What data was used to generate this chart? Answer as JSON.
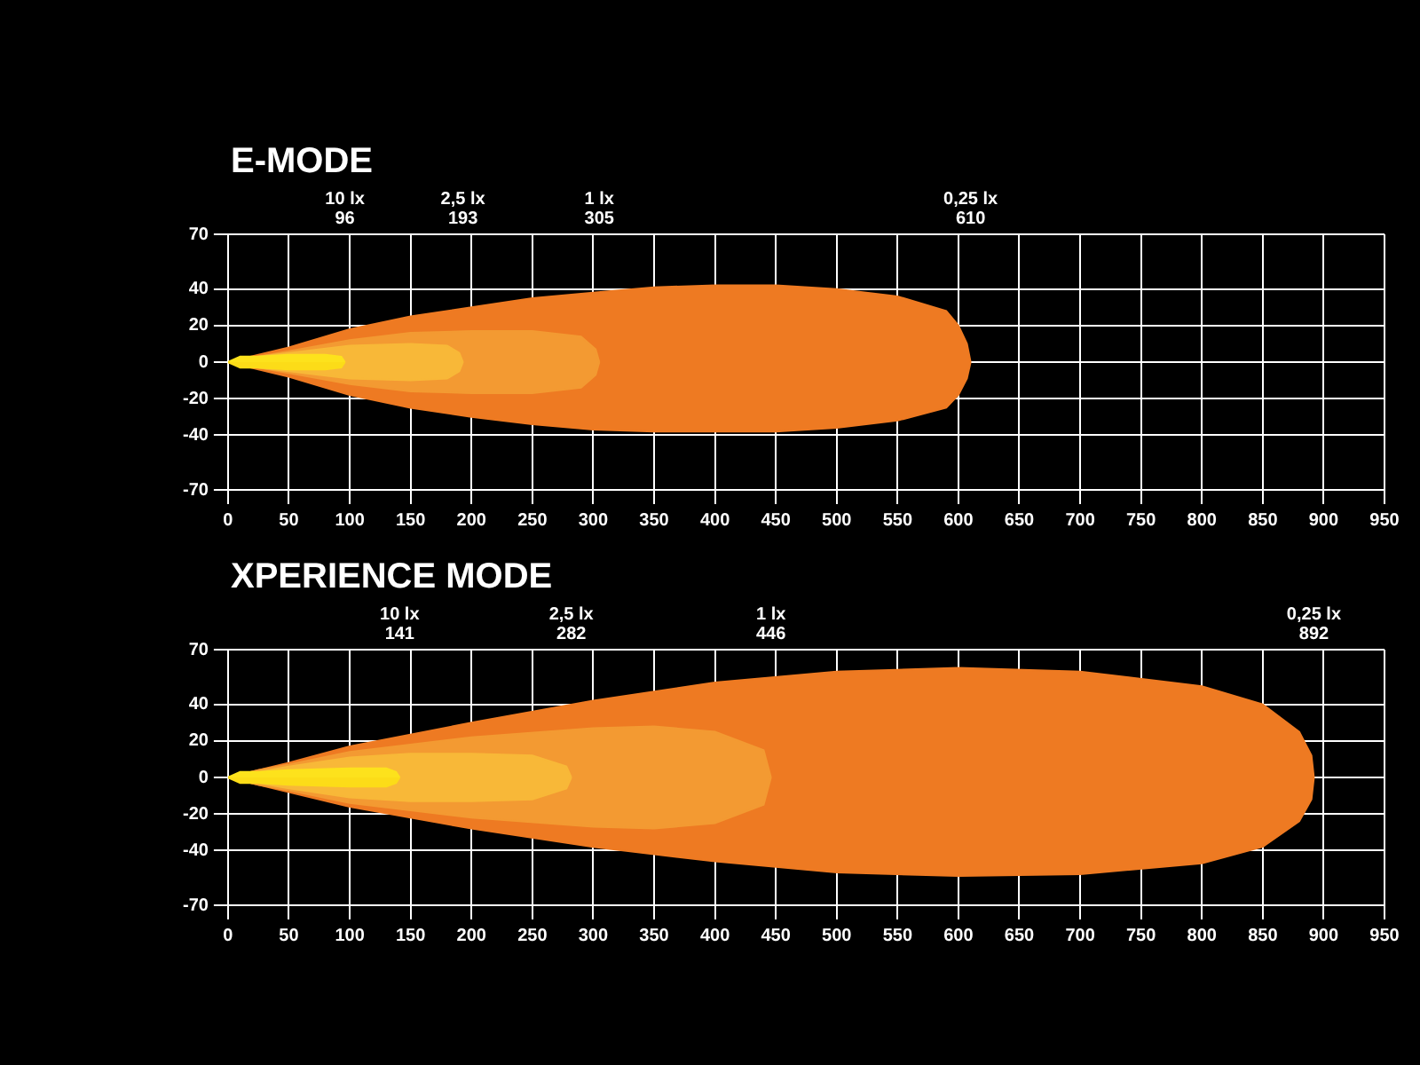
{
  "chart_data": [
    {
      "type": "area",
      "title": "E-MODE",
      "xlim": [
        0,
        950
      ],
      "xticks": [
        0,
        50,
        100,
        150,
        200,
        250,
        300,
        350,
        400,
        450,
        500,
        550,
        600,
        650,
        700,
        750,
        800,
        850,
        900,
        950
      ],
      "ylim": [
        -70,
        70
      ],
      "yticks": [
        70,
        40,
        20,
        0,
        -20,
        -40,
        -70
      ],
      "grid": true,
      "annotations": [
        "10 lx\n96",
        "2,5 lx\n193",
        "1 lx\n305",
        "0,25 lx\n610"
      ],
      "series": [
        {
          "color": "#ee7a22",
          "x": [
            0,
            25,
            50,
            100,
            150,
            200,
            250,
            300,
            350,
            400,
            450,
            500,
            550,
            590,
            600,
            607,
            610
          ],
          "values": [
            0,
            4,
            8,
            18,
            25,
            30,
            35,
            38,
            41,
            42,
            42,
            40,
            36,
            28,
            20,
            10,
            0
          ]
        },
        {
          "color": "#ee7a22",
          "x": [
            0,
            25,
            50,
            100,
            150,
            200,
            250,
            300,
            350,
            400,
            450,
            500,
            550,
            590,
            600,
            607,
            610
          ],
          "values": [
            0,
            -4,
            -8,
            -18,
            -25,
            -30,
            -34,
            -37,
            -38,
            -38,
            -38,
            -36,
            -32,
            -25,
            -18,
            -9,
            0
          ]
        },
        {
          "color": "#f39a32",
          "x": [
            0,
            25,
            50,
            100,
            150,
            200,
            250,
            290,
            302,
            305
          ],
          "values": [
            0,
            3,
            6,
            12,
            16,
            17,
            17,
            14,
            7,
            0
          ]
        },
        {
          "color": "#f39a32",
          "x": [
            0,
            25,
            50,
            100,
            150,
            200,
            250,
            290,
            302,
            305
          ],
          "values": [
            0,
            -3,
            -6,
            -12,
            -16,
            -17,
            -17,
            -14,
            -7,
            0
          ]
        },
        {
          "color": "#f8b838",
          "x": [
            0,
            25,
            50,
            100,
            150,
            180,
            190,
            193
          ],
          "values": [
            0,
            3,
            5,
            9,
            10,
            9,
            5,
            0
          ]
        },
        {
          "color": "#f8b838",
          "x": [
            0,
            25,
            50,
            100,
            150,
            180,
            190,
            193
          ],
          "values": [
            0,
            -3,
            -5,
            -9,
            -10,
            -9,
            -5,
            0
          ]
        },
        {
          "color": "#fde21c",
          "x": [
            0,
            10,
            25,
            50,
            80,
            93,
            96
          ],
          "values": [
            0,
            3,
            3,
            4,
            4,
            3,
            0
          ]
        },
        {
          "color": "#fcdc18",
          "x": [
            0,
            10,
            25,
            50,
            80,
            93,
            96
          ],
          "values": [
            0,
            -3,
            -3,
            -4,
            -4,
            -3,
            0
          ]
        }
      ]
    },
    {
      "type": "area",
      "title": "XPERIENCE MODE",
      "xlim": [
        0,
        950
      ],
      "xticks": [
        0,
        50,
        100,
        150,
        200,
        250,
        300,
        350,
        400,
        450,
        500,
        550,
        600,
        650,
        700,
        750,
        800,
        850,
        900,
        950
      ],
      "ylim": [
        -70,
        70
      ],
      "yticks": [
        70,
        40,
        20,
        0,
        -20,
        -40,
        -70
      ],
      "grid": true,
      "annotations": [
        "10 lx\n141",
        "2,5 lx\n282",
        "1 lx\n446",
        "0,25 lx\n892"
      ],
      "series": [
        {
          "color": "#ee7a22",
          "x": [
            0,
            25,
            50,
            100,
            200,
            300,
            400,
            500,
            600,
            700,
            800,
            850,
            880,
            890,
            892
          ],
          "values": [
            0,
            4,
            8,
            17,
            30,
            42,
            52,
            58,
            60,
            58,
            50,
            40,
            25,
            12,
            0
          ]
        },
        {
          "color": "#ee7a22",
          "x": [
            0,
            25,
            50,
            100,
            200,
            300,
            400,
            500,
            600,
            700,
            800,
            850,
            880,
            890,
            892
          ],
          "values": [
            0,
            -4,
            -8,
            -16,
            -28,
            -38,
            -46,
            -52,
            -54,
            -53,
            -47,
            -38,
            -24,
            -12,
            0
          ]
        },
        {
          "color": "#f39a32",
          "x": [
            0,
            25,
            50,
            100,
            200,
            300,
            350,
            400,
            440,
            446
          ],
          "values": [
            0,
            4,
            7,
            14,
            22,
            27,
            28,
            25,
            15,
            0
          ]
        },
        {
          "color": "#f39a32",
          "x": [
            0,
            25,
            50,
            100,
            200,
            300,
            350,
            400,
            440,
            446
          ],
          "values": [
            0,
            -4,
            -7,
            -14,
            -22,
            -27,
            -28,
            -25,
            -15,
            0
          ]
        },
        {
          "color": "#f8b838",
          "x": [
            0,
            25,
            50,
            100,
            150,
            200,
            250,
            278,
            282
          ],
          "values": [
            0,
            3,
            6,
            11,
            13,
            13,
            12,
            6,
            0
          ]
        },
        {
          "color": "#f8b838",
          "x": [
            0,
            25,
            50,
            100,
            150,
            200,
            250,
            278,
            282
          ],
          "values": [
            0,
            -3,
            -6,
            -11,
            -13,
            -13,
            -12,
            -6,
            0
          ]
        },
        {
          "color": "#fde21c",
          "x": [
            0,
            10,
            25,
            50,
            100,
            130,
            138,
            141
          ],
          "values": [
            0,
            3,
            3,
            4,
            5,
            5,
            3,
            0
          ]
        },
        {
          "color": "#fcdc18",
          "x": [
            0,
            10,
            25,
            50,
            100,
            130,
            138,
            141
          ],
          "values": [
            0,
            -3,
            -3,
            -4,
            -5,
            -5,
            -3,
            0
          ]
        }
      ]
    }
  ]
}
